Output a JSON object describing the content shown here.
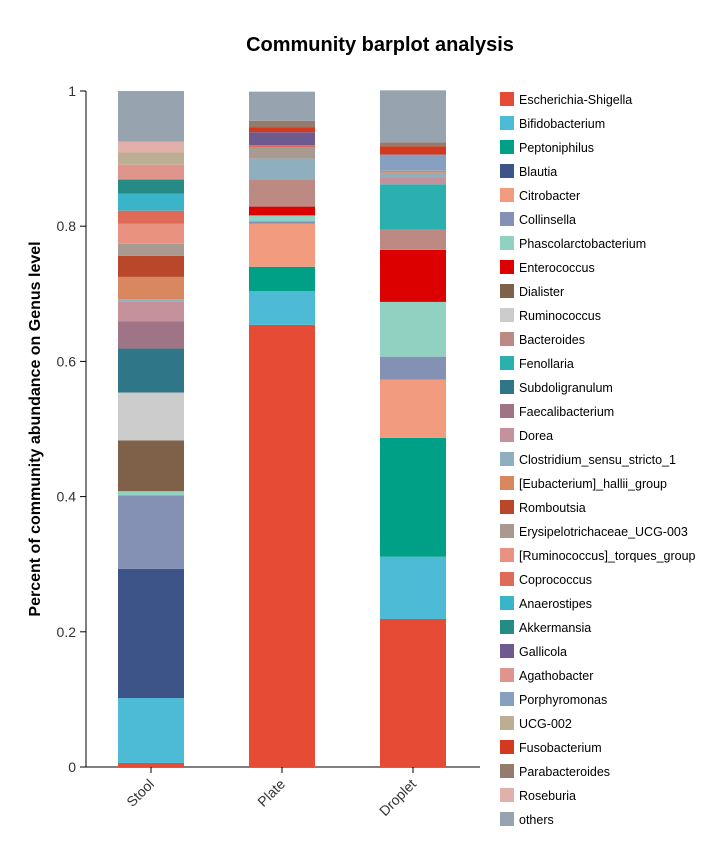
{
  "chart_data": {
    "type": "bar",
    "stacked": true,
    "title": "Community barplot analysis",
    "xlabel": "",
    "ylabel": "Percent of community abundance on Genus level",
    "ylim": [
      0,
      1
    ],
    "yticks": [
      "0",
      "0.2",
      "0.4",
      "0.6",
      "0.8",
      "1"
    ],
    "ytick_values": [
      0,
      0.2,
      0.4,
      0.6,
      0.8,
      1
    ],
    "categories": [
      "Stool",
      "Plate",
      "Droplet"
    ],
    "legend_position": "right",
    "series": [
      {
        "name": "Escherichia-Shigella",
        "color": "#E64B35",
        "values": [
          0.006,
          0.654,
          0.219
        ]
      },
      {
        "name": "Bifidobacterium",
        "color": "#4DBBD5",
        "values": [
          0.096,
          0.05,
          0.092
        ]
      },
      {
        "name": "Peptoniphilus",
        "color": "#00A087",
        "values": [
          0.0,
          0.036,
          0.176
        ]
      },
      {
        "name": "Blautia",
        "color": "#3C5488",
        "values": [
          0.191,
          0.0,
          0.0
        ]
      },
      {
        "name": "Citrobacter",
        "color": "#F39B7F",
        "values": [
          0.0,
          0.064,
          0.086
        ]
      },
      {
        "name": "Collinsella",
        "color": "#8491B4",
        "values": [
          0.109,
          0.003,
          0.034
        ]
      },
      {
        "name": "Phascolarctobacterium",
        "color": "#91D1C2",
        "values": [
          0.006,
          0.009,
          0.081
        ]
      },
      {
        "name": "Enterococcus",
        "color": "#DC0000",
        "values": [
          0.0,
          0.013,
          0.077
        ]
      },
      {
        "name": "Dialister",
        "color": "#7E6148",
        "values": [
          0.075,
          0.0,
          0.0
        ]
      },
      {
        "name": "Ruminococcus",
        "color": "#CCCCCC",
        "values": [
          0.071,
          0.0,
          0.0
        ]
      },
      {
        "name": "Bacteroides",
        "color": "#BC8A83",
        "values": [
          0.0,
          0.04,
          0.03
        ]
      },
      {
        "name": "Fenollaria",
        "color": "#2CAFAF",
        "values": [
          0.0,
          0.0,
          0.067
        ]
      },
      {
        "name": "Subdoligranulum",
        "color": "#2E7688",
        "values": [
          0.065,
          0.0,
          0.0
        ]
      },
      {
        "name": "Faecalibacterium",
        "color": "#A07487",
        "values": [
          0.04,
          0.0,
          0.0
        ]
      },
      {
        "name": "Dorea",
        "color": "#C5929C",
        "values": [
          0.03,
          0.0,
          0.01
        ]
      },
      {
        "name": "Clostridium_sensu_stricto_1",
        "color": "#8FAFBF",
        "values": [
          0.003,
          0.031,
          0.007
        ]
      },
      {
        "name": "[Eubacterium]_hallii_group",
        "color": "#D8875E",
        "values": [
          0.033,
          0.0,
          0.003
        ]
      },
      {
        "name": "Romboutsia",
        "color": "#B9472A",
        "values": [
          0.031,
          0.0,
          0.0
        ]
      },
      {
        "name": "Erysipelotrichaceae_UCG-003",
        "color": "#A99A91",
        "values": [
          0.018,
          0.016,
          0.0
        ]
      },
      {
        "name": "[Ruminococcus]_torques_group",
        "color": "#EA9281",
        "values": [
          0.03,
          0.0,
          0.0
        ]
      },
      {
        "name": "Coprococcus",
        "color": "#DE6A57",
        "values": [
          0.019,
          0.004,
          0.0
        ]
      },
      {
        "name": "Anaerostipes",
        "color": "#3AB4C9",
        "values": [
          0.025,
          0.0,
          0.0
        ]
      },
      {
        "name": "Akkermansia",
        "color": "#268A85",
        "values": [
          0.021,
          0.0,
          0.0
        ]
      },
      {
        "name": "Gallicola",
        "color": "#6E5A8E",
        "values": [
          0.0,
          0.019,
          0.0
        ]
      },
      {
        "name": "Agathobacter",
        "color": "#E0958C",
        "values": [
          0.022,
          0.0,
          0.0
        ]
      },
      {
        "name": "Porphyromonas",
        "color": "#88A0C0",
        "values": [
          0.0,
          0.0,
          0.024
        ]
      },
      {
        "name": "UCG-002",
        "color": "#BBAE92",
        "values": [
          0.018,
          0.0,
          0.0
        ]
      },
      {
        "name": "Fusobacterium",
        "color": "#D3391F",
        "values": [
          0.0,
          0.007,
          0.012
        ]
      },
      {
        "name": "Parabacteroides",
        "color": "#957B6B",
        "values": [
          0.0,
          0.01,
          0.006
        ]
      },
      {
        "name": "Roseburia",
        "color": "#E2B0AA",
        "values": [
          0.016,
          0.0,
          0.0
        ]
      },
      {
        "name": "others",
        "color": "#97A4AF",
        "values": [
          0.075,
          0.043,
          0.077
        ]
      }
    ]
  }
}
